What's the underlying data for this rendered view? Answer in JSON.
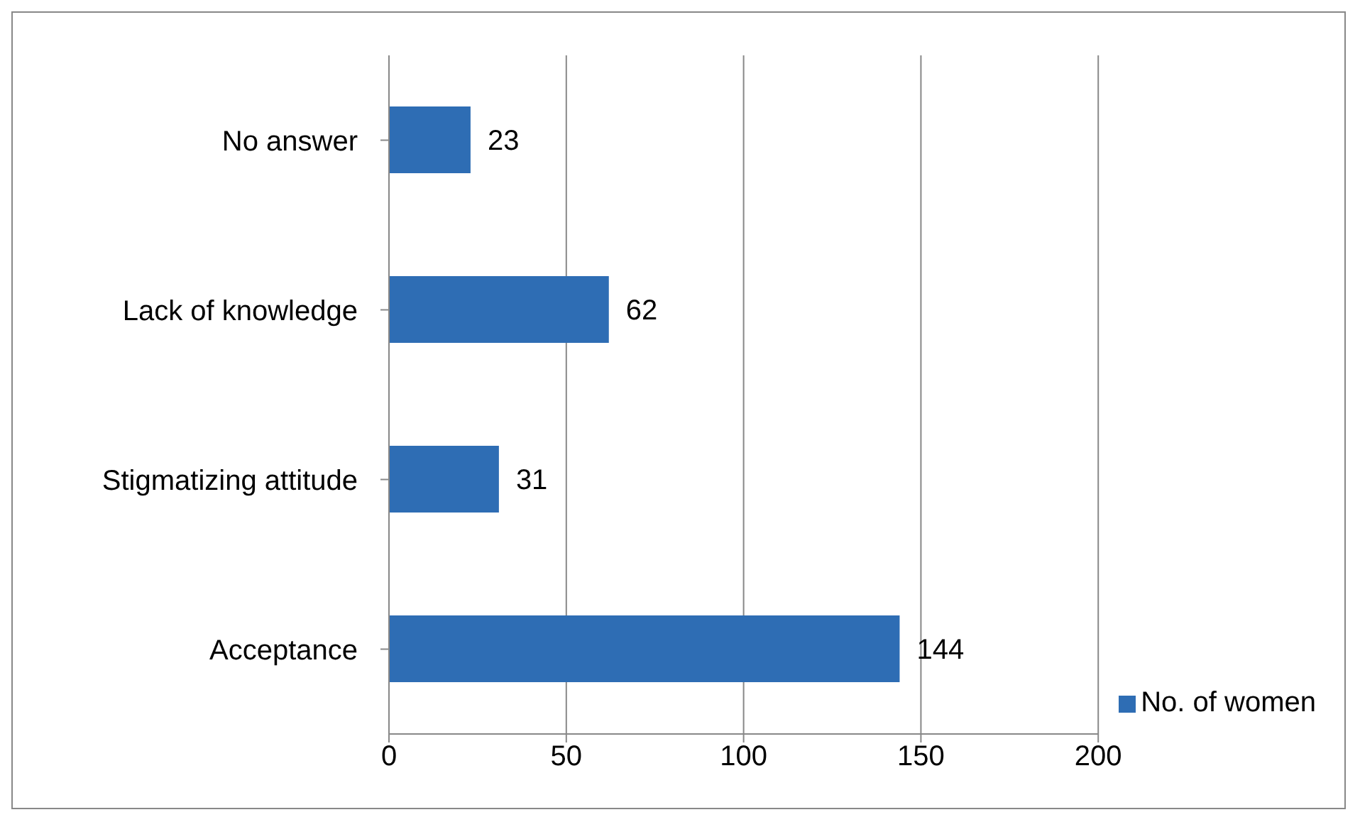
{
  "chart_data": {
    "type": "bar",
    "orientation": "horizontal",
    "categories": [
      "No answer",
      "Lack of knowledge",
      "Stigmatizing attitude",
      "Acceptance"
    ],
    "series": [
      {
        "name": "No. of women",
        "color": "#2e6db4",
        "values": [
          23,
          62,
          31,
          144
        ]
      }
    ],
    "xlim": [
      0,
      200
    ],
    "xticks": [
      0,
      50,
      100,
      150,
      200
    ],
    "grid": "x",
    "legend": "bottom right",
    "data_labels": true
  }
}
